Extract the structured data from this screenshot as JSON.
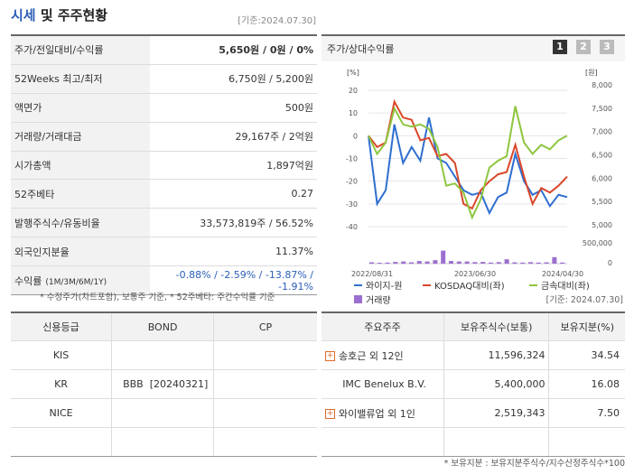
{
  "header": {
    "title_accent": "시세",
    "title_rest": " 및 주주현황",
    "date": "[기준:2024.07.30]"
  },
  "main_rows": [
    {
      "label": "주가/전일대비/수익률",
      "value_bold": "5,650원",
      "value_rest": " / 0원 / 0%"
    },
    {
      "label": "52Weeks 최고/최저",
      "value": "6,750원 / 5,200원"
    },
    {
      "label": "액면가",
      "value": "500원"
    },
    {
      "label": "거래량/거래대금",
      "value": "29,167주 / 2억원"
    },
    {
      "label": "시가총액",
      "value": "1,897억원"
    },
    {
      "label": "52주베타",
      "value": "0.27"
    },
    {
      "label": "발행주식수/유동비율",
      "value": "33,573,819주 / 56.52%"
    },
    {
      "label": "외국인지분율",
      "value": "11.37%"
    },
    {
      "label": "수익률",
      "label_small": "(1M/3M/6M/1Y)",
      "value": "-0.88% / -2.59% / -13.87% / -1.91%"
    }
  ],
  "footnote_left": "* 수정주가(차트포함), 보통주 기준, * 52주베타: 주간수익률 기준",
  "footnote_right": "[기준: 2024.07.30]",
  "chart_header": {
    "label": "주가/상대수익률",
    "pages": [
      "1",
      "2",
      "3"
    ]
  },
  "chart_data": {
    "type": "line",
    "y_left_unit": "[%]",
    "y_right_unit": "[원]",
    "y_left_ticks": [
      "20",
      "10",
      "0",
      "-10",
      "-20",
      "-30",
      "-40"
    ],
    "y_right_ticks": [
      "8,000",
      "7,500",
      "7,000",
      "6,500",
      "6,000",
      "5,500",
      "5,000"
    ],
    "volume_ticks": [
      "500,000",
      "0"
    ],
    "x_ticks": [
      "2022/08/31",
      "2023/06/30",
      "2024/04/30"
    ],
    "ylim": [
      -40,
      20
    ],
    "series": [
      {
        "name": "와이지-원",
        "color": "#2f6fd0",
        "values": [
          0,
          -30,
          -24,
          5,
          -12,
          -5,
          -11,
          8,
          -10,
          -12,
          -18,
          -24,
          -26,
          -25,
          -34,
          -27,
          -25,
          -8,
          -20,
          -26,
          -24,
          -31,
          -26,
          -27
        ]
      },
      {
        "name": "KOSDAQ대비(좌)",
        "color": "#d9472a",
        "values": [
          0,
          -5,
          -3,
          15,
          8,
          7,
          -2,
          -1,
          -9,
          -8,
          -12,
          -30,
          -32,
          -24,
          -20,
          -17,
          -16,
          -4,
          -18,
          -30,
          -23,
          -25,
          -22,
          -18
        ]
      },
      {
        "name": "금속대비(좌)",
        "color": "#8ec63f",
        "values": [
          0,
          -8,
          -3,
          12,
          5,
          4,
          5,
          3,
          -5,
          -22,
          -21,
          -25,
          -36,
          -28,
          -14,
          -11,
          -9,
          13,
          -3,
          -8,
          -4,
          -6,
          -2,
          0
        ]
      }
    ],
    "volume": {
      "name": "거래량",
      "color": "#9b6fd0",
      "values": [
        0.06,
        0.04,
        0.05,
        0.08,
        0.1,
        0.06,
        0.12,
        0.1,
        0.16,
        0.6,
        0.12,
        0.1,
        0.1,
        0.07,
        0.08,
        0.05,
        0.07,
        0.2,
        0.06,
        0.05,
        0.07,
        0.05,
        0.06,
        0.3,
        0.05
      ]
    }
  },
  "credit_table": {
    "headers": [
      "신용등급",
      "BOND",
      "CP"
    ],
    "rows": [
      [
        "KIS",
        "",
        ""
      ],
      [
        "KR",
        "BBB  [20240321]",
        ""
      ],
      [
        "NICE",
        "",
        ""
      ],
      [
        "",
        "",
        ""
      ]
    ]
  },
  "holders_table": {
    "headers": [
      "주요주주",
      "보유주식수(보통)",
      "보유지분(%)"
    ],
    "rows": [
      {
        "name": "송호근 외 12인",
        "expand": true,
        "shares": "11,596,324",
        "pct": "34.54"
      },
      {
        "name": "IMC Benelux B.V.",
        "expand": false,
        "shares": "5,400,000",
        "pct": "16.08"
      },
      {
        "name": "와이밸류업 외 1인",
        "expand": true,
        "shares": "2,519,343",
        "pct": "7.50"
      },
      {
        "name": "",
        "expand": false,
        "shares": "",
        "pct": ""
      }
    ]
  },
  "footnote_bottom": "* 보유지분 : 보유지분주식수/지수산정주식수*100",
  "colors": {
    "accent": "#2b5fb7",
    "page_active": "#333333",
    "page_inactive": "#bbbbbb"
  }
}
